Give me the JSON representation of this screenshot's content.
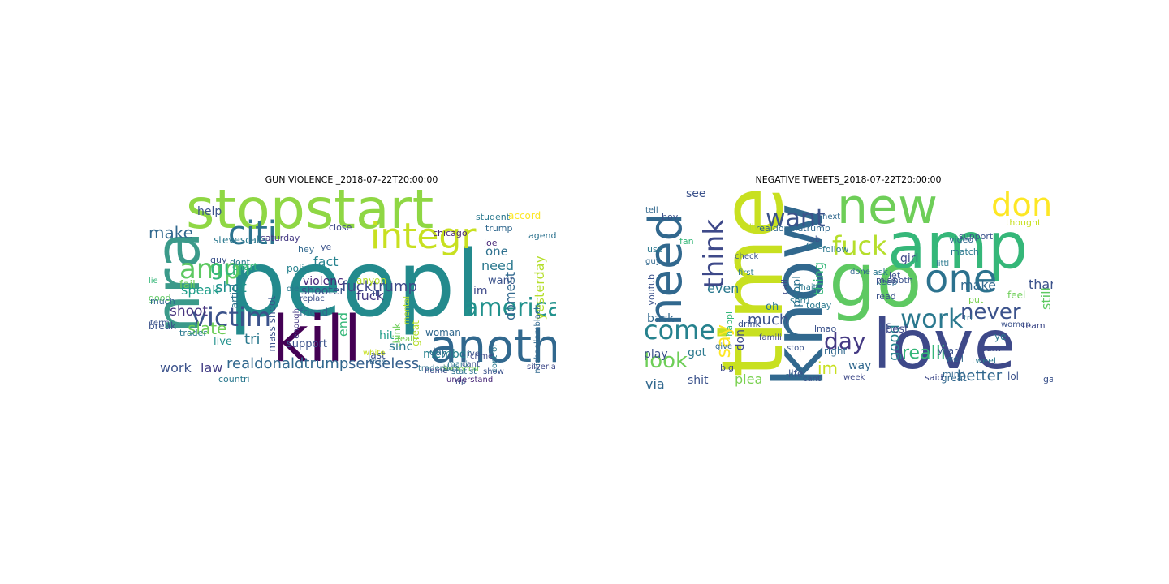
{
  "clouds": [
    {
      "title": "GUN VIOLENCE _2018-07-22T20:00:00",
      "words": [
        {
          "text": "nra",
          "color": "#3b9a8a",
          "weight": 1
        },
        {
          "text": "peopl",
          "color": "#238a8d",
          "weight": 1
        },
        {
          "text": "stopstart",
          "color": "#8fd744",
          "weight": 1
        },
        {
          "text": "kill",
          "color": "#440154",
          "weight": 1
        },
        {
          "text": "anoth",
          "color": "#31688e",
          "weight": 1
        },
        {
          "text": "integr",
          "color": "#c8e020",
          "weight": 1
        },
        {
          "text": "citi",
          "color": "#2c728e",
          "weight": 1
        },
        {
          "text": "amp",
          "color": "#5ec962",
          "weight": 1
        },
        {
          "text": "america",
          "color": "#21918c",
          "weight": 1
        },
        {
          "text": "victim",
          "color": "#3b528b",
          "weight": 1
        },
        {
          "text": "gun",
          "color": "#35b779",
          "weight": 1
        },
        {
          "text": "realdonaldtrump",
          "color": "#31688e",
          "weight": 1
        },
        {
          "text": "senseless",
          "color": "#355f8d",
          "weight": 1
        },
        {
          "text": "fact",
          "color": "#26828e",
          "weight": 1
        },
        {
          "text": "violenc",
          "color": "#482878",
          "weight": 1
        },
        {
          "text": "fucktrump",
          "color": "#3e4989",
          "weight": 1
        },
        {
          "text": "fuck",
          "color": "#443983",
          "weight": 1
        },
        {
          "text": "need",
          "color": "#2a788e",
          "weight": 1
        },
        {
          "text": "make",
          "color": "#31688e",
          "weight": 1
        },
        {
          "text": "shot",
          "color": "#21918c",
          "weight": 1
        },
        {
          "text": "shooter",
          "color": "#3b528b",
          "weight": 1
        },
        {
          "text": "speak",
          "color": "#1f9e89",
          "weight": 1
        },
        {
          "text": "shoot",
          "color": "#46337e",
          "weight": 1
        },
        {
          "text": "slate",
          "color": "#6ece58",
          "weight": 1
        },
        {
          "text": "tri",
          "color": "#2a788e",
          "weight": 1
        },
        {
          "text": "work",
          "color": "#3b528b",
          "weight": 1
        },
        {
          "text": "law",
          "color": "#433e85",
          "weight": 1
        },
        {
          "text": "live",
          "color": "#21918c",
          "weight": 1
        },
        {
          "text": "member",
          "color": "#26828e",
          "weight": 1
        },
        {
          "text": "yesterday",
          "color": "#b5de2b",
          "weight": 1
        },
        {
          "text": "domest",
          "color": "#31688e",
          "weight": 1
        },
        {
          "text": "one",
          "color": "#2d708e",
          "weight": 1
        },
        {
          "text": "want",
          "color": "#3b528b",
          "weight": 1
        },
        {
          "text": "im",
          "color": "#3e4989",
          "weight": 1
        },
        {
          "text": "sinc",
          "color": "#2a788e",
          "weight": 1
        },
        {
          "text": "hit",
          "color": "#1f9e89",
          "weight": 1
        },
        {
          "text": "end",
          "color": "#35b779",
          "weight": 1
        },
        {
          "text": "woman",
          "color": "#31688e",
          "weight": 1
        },
        {
          "text": "help",
          "color": "#3b528b",
          "weight": 1
        },
        {
          "text": "fail",
          "color": "#6ece58",
          "weight": 1
        },
        {
          "text": "saturday",
          "color": "#443983",
          "weight": 1
        },
        {
          "text": "stevescalis",
          "color": "#2a788e",
          "weight": 1
        },
        {
          "text": "chicago",
          "color": "#482878",
          "weight": 1
        },
        {
          "text": "agenda",
          "color": "#2c728e",
          "weight": 1
        },
        {
          "text": "mass shoot",
          "color": "#3b528b",
          "weight": 1
        },
        {
          "text": "day",
          "color": "#31688e",
          "weight": 1
        },
        {
          "text": "accord",
          "color": "#fde725",
          "weight": 1
        },
        {
          "text": "crime",
          "color": "#3e4989",
          "weight": 1
        },
        {
          "text": "mental",
          "color": "#b5de2b",
          "weight": 1
        },
        {
          "text": "friend",
          "color": "#31688e",
          "weight": 1
        },
        {
          "text": "support",
          "color": "#3b528b",
          "weight": 1
        },
        {
          "text": "trader",
          "color": "#2a788e",
          "weight": 1
        },
        {
          "text": "break",
          "color": "#3b528b",
          "weight": 1
        },
        {
          "text": "good",
          "color": "#5ec962",
          "weight": 1
        },
        {
          "text": "silveriak",
          "color": "#3e4989",
          "weight": 1
        },
        {
          "text": "traderjo",
          "color": "#2c728e",
          "weight": 1
        },
        {
          "text": "democrat",
          "color": "#7ad151",
          "weight": 1
        },
        {
          "text": "hey",
          "color": "#31688e",
          "weight": 1
        },
        {
          "text": "guy",
          "color": "#3b528b",
          "weight": 1
        },
        {
          "text": "polic",
          "color": "#26828e",
          "weight": 1
        },
        {
          "text": "close",
          "color": "#3e4989",
          "weight": 1
        },
        {
          "text": "ye",
          "color": "#3b528b",
          "weight": 1
        },
        {
          "text": "dont",
          "color": "#2a788e",
          "weight": 1
        },
        {
          "text": "chart",
          "color": "#35b779",
          "weight": 1
        },
        {
          "text": "anyon",
          "color": "#b5de2b",
          "weight": 1
        },
        {
          "text": "replac",
          "color": "#3b528b",
          "weight": 1
        },
        {
          "text": "die",
          "color": "#2a788e",
          "weight": 1
        },
        {
          "text": "enough",
          "color": "#443983",
          "weight": 1
        },
        {
          "text": "last",
          "color": "#3b528b",
          "weight": 1
        },
        {
          "text": "true",
          "color": "#31688e",
          "weight": 1
        },
        {
          "text": "statist",
          "color": "#2c728e",
          "weight": 1
        },
        {
          "text": "home",
          "color": "#3e4989",
          "weight": 1
        },
        {
          "text": "realiz",
          "color": "#7ad151",
          "weight": 1
        },
        {
          "text": "white",
          "color": "#c8e020",
          "weight": 1
        },
        {
          "text": "cant",
          "color": "#3b528b",
          "weight": 1
        },
        {
          "text": "student",
          "color": "#2a788e",
          "weight": 1
        },
        {
          "text": "trump",
          "color": "#31688e",
          "weight": 1
        },
        {
          "text": "joe",
          "color": "#482878",
          "weight": 1
        },
        {
          "text": "liar",
          "color": "#3b528b",
          "weight": 1
        },
        {
          "text": "michaeliamblack",
          "color": "#31688e",
          "weight": 1
        },
        {
          "text": "think",
          "color": "#6ece58",
          "weight": 1
        },
        {
          "text": "great",
          "color": "#b5de2b",
          "weight": 1
        },
        {
          "text": "ill",
          "color": "#3b528b",
          "weight": 1
        },
        {
          "text": "countri",
          "color": "#2a788e",
          "weight": 1
        },
        {
          "text": "term",
          "color": "#3b528b",
          "weight": 1
        },
        {
          "text": "much",
          "color": "#31688e",
          "weight": 1
        },
        {
          "text": "lie",
          "color": "#35b779",
          "weight": 1
        },
        {
          "text": "articl",
          "color": "#2c728e",
          "weight": 1
        },
        {
          "text": "rip",
          "color": "#3b528b",
          "weight": 1
        },
        {
          "text": "mani",
          "color": "#2a788e",
          "weight": 1
        },
        {
          "text": "side",
          "color": "#31688e",
          "weight": 1
        },
        {
          "text": "ive",
          "color": "#3b528b",
          "weight": 1
        },
        {
          "text": "control",
          "color": "#2a788e",
          "weight": 1
        },
        {
          "text": "understand",
          "color": "#482878",
          "weight": 1
        },
        {
          "text": "show",
          "color": "#3b528b",
          "weight": 1
        }
      ]
    },
    {
      "title": "NEGATIVE TWEETS_2018-07-22T20:00:00",
      "words": [
        {
          "text": "time",
          "color": "#c8e020",
          "weight": 1
        },
        {
          "text": "love",
          "color": "#3e4989",
          "weight": 1
        },
        {
          "text": "know",
          "color": "#31688e",
          "weight": 1
        },
        {
          "text": "go",
          "color": "#5ec962",
          "weight": 1
        },
        {
          "text": "amp",
          "color": "#35b779",
          "weight": 1
        },
        {
          "text": "new",
          "color": "#6ece58",
          "weight": 1
        },
        {
          "text": "one",
          "color": "#2c728e",
          "weight": 1
        },
        {
          "text": "dont",
          "color": "#fde725",
          "weight": 1
        },
        {
          "text": "need",
          "color": "#31688e",
          "weight": 1
        },
        {
          "text": "fuck",
          "color": "#b5de2b",
          "weight": 1
        },
        {
          "text": "want",
          "color": "#3b528b",
          "weight": 1
        },
        {
          "text": "think",
          "color": "#3e4989",
          "weight": 1
        },
        {
          "text": "work",
          "color": "#2a788e",
          "weight": 1
        },
        {
          "text": "never",
          "color": "#3b528b",
          "weight": 1
        },
        {
          "text": "day",
          "color": "#443983",
          "weight": 1
        },
        {
          "text": "come",
          "color": "#26828e",
          "weight": 1
        },
        {
          "text": "look",
          "color": "#6ece58",
          "weight": 1
        },
        {
          "text": "realli",
          "color": "#35b779",
          "weight": 1
        },
        {
          "text": "better",
          "color": "#31688e",
          "weight": 1
        },
        {
          "text": "say",
          "color": "#fde725",
          "weight": 1
        },
        {
          "text": "im",
          "color": "#c8e020",
          "weight": 1
        },
        {
          "text": "make",
          "color": "#31688e",
          "weight": 1
        },
        {
          "text": "thank",
          "color": "#3b528b",
          "weight": 1
        },
        {
          "text": "girl",
          "color": "#3e4989",
          "weight": 1
        },
        {
          "text": "even",
          "color": "#2a788e",
          "weight": 1
        },
        {
          "text": "still",
          "color": "#5ec962",
          "weight": 1
        },
        {
          "text": "much",
          "color": "#3b528b",
          "weight": 1
        },
        {
          "text": "good",
          "color": "#26828e",
          "weight": 1
        },
        {
          "text": "back",
          "color": "#31688e",
          "weight": 1
        },
        {
          "text": "play",
          "color": "#3b528b",
          "weight": 1
        },
        {
          "text": "got",
          "color": "#2a788e",
          "weight": 1
        },
        {
          "text": "via",
          "color": "#31688e",
          "weight": 1
        },
        {
          "text": "shit",
          "color": "#3b528b",
          "weight": 1
        },
        {
          "text": "plea",
          "color": "#7ad151",
          "weight": 1
        },
        {
          "text": "don",
          "color": "#3e4989",
          "weight": 1
        },
        {
          "text": "thing",
          "color": "#35b779",
          "weight": 1
        },
        {
          "text": "peopl",
          "color": "#2c728e",
          "weight": 1
        },
        {
          "text": "see",
          "color": "#3b528b",
          "weight": 1
        },
        {
          "text": "way",
          "color": "#31688e",
          "weight": 1
        },
        {
          "text": "us",
          "color": "#3b528b",
          "weight": 1
        },
        {
          "text": "ye",
          "color": "#2a788e",
          "weight": 1
        },
        {
          "text": "women",
          "color": "#3b528b",
          "weight": 1
        },
        {
          "text": "feel",
          "color": "#6ece58",
          "weight": 1
        },
        {
          "text": "best",
          "color": "#3e4989",
          "weight": 1
        },
        {
          "text": "great",
          "color": "#31688e",
          "weight": 1
        },
        {
          "text": "lol",
          "color": "#3b528b",
          "weight": 1
        },
        {
          "text": "oh",
          "color": "#2a788e",
          "weight": 1
        },
        {
          "text": "call",
          "color": "#3e4989",
          "weight": 1
        },
        {
          "text": "right",
          "color": "#31688e",
          "weight": 1
        },
        {
          "text": "life",
          "color": "#3b528b",
          "weight": 1
        },
        {
          "text": "famili",
          "color": "#3e4989",
          "weight": 1
        },
        {
          "text": "happi",
          "color": "#35b779",
          "weight": 1
        },
        {
          "text": "keep",
          "color": "#31688e",
          "weight": 1
        },
        {
          "text": "follow",
          "color": "#2a788e",
          "weight": 1
        },
        {
          "text": "job",
          "color": "#3b528b",
          "weight": 1
        },
        {
          "text": "free",
          "color": "#2c728e",
          "weight": 1
        },
        {
          "text": "live",
          "color": "#b5de2b",
          "weight": 1
        },
        {
          "text": "realdonaldtrump",
          "color": "#31688e",
          "weight": 1
        },
        {
          "text": "check",
          "color": "#3b528b",
          "weight": 1
        },
        {
          "text": "first",
          "color": "#2a788e",
          "weight": 1
        },
        {
          "text": "drink",
          "color": "#3b528b",
          "weight": 1
        },
        {
          "text": "give",
          "color": "#31688e",
          "weight": 1
        },
        {
          "text": "big",
          "color": "#3e4989",
          "weight": 1
        },
        {
          "text": "today",
          "color": "#2a788e",
          "weight": 1
        },
        {
          "text": "stop",
          "color": "#3b528b",
          "weight": 1
        },
        {
          "text": "stay",
          "color": "#31688e",
          "weight": 1
        },
        {
          "text": "lmao",
          "color": "#3b528b",
          "weight": 1
        },
        {
          "text": "ask",
          "color": "#2a788e",
          "weight": 1
        },
        {
          "text": "miss",
          "color": "#3e4989",
          "weight": 1
        },
        {
          "text": "let",
          "color": "#3b528b",
          "weight": 1
        },
        {
          "text": "video",
          "color": "#31688e",
          "weight": 1
        },
        {
          "text": "match",
          "color": "#2a788e",
          "weight": 1
        },
        {
          "text": "put",
          "color": "#7ad151",
          "weight": 1
        },
        {
          "text": "year",
          "color": "#3b528b",
          "weight": 1
        },
        {
          "text": "mind",
          "color": "#31688e",
          "weight": 1
        },
        {
          "text": "learn",
          "color": "#3e4989",
          "weight": 1
        },
        {
          "text": "tweet",
          "color": "#2a788e",
          "weight": 1
        },
        {
          "text": "game",
          "color": "#3b528b",
          "weight": 1
        },
        {
          "text": "tell",
          "color": "#31688e",
          "weight": 1
        },
        {
          "text": "boy",
          "color": "#3b528b",
          "weight": 1
        },
        {
          "text": "fan",
          "color": "#35b779",
          "weight": 1
        },
        {
          "text": "use",
          "color": "#2a788e",
          "weight": 1
        },
        {
          "text": "said",
          "color": "#3e4989",
          "weight": 1
        },
        {
          "text": "well",
          "color": "#31688e",
          "weight": 1
        },
        {
          "text": "support",
          "color": "#3b528b",
          "weight": 1
        },
        {
          "text": "littl",
          "color": "#2a788e",
          "weight": 1
        },
        {
          "text": "done",
          "color": "#31688e",
          "weight": 1
        },
        {
          "text": "anoth",
          "color": "#3b528b",
          "weight": 1
        },
        {
          "text": "tri",
          "color": "#2c728e",
          "weight": 1
        },
        {
          "text": "team",
          "color": "#3e4989",
          "weight": 1
        },
        {
          "text": "thought",
          "color": "#c8e020",
          "weight": 1
        },
        {
          "text": "youtub",
          "color": "#3b528b",
          "weight": 1
        },
        {
          "text": "guy",
          "color": "#31688e",
          "weight": 1
        },
        {
          "text": "sorri",
          "color": "#2a788e",
          "weight": 1
        },
        {
          "text": "read",
          "color": "#3b528b",
          "weight": 1
        },
        {
          "text": "next",
          "color": "#31688e",
          "weight": 1
        },
        {
          "text": "week",
          "color": "#3e4989",
          "weight": 1
        },
        {
          "text": "cant",
          "color": "#3b528b",
          "weight": 1
        },
        {
          "text": "mait",
          "color": "#2a788e",
          "weight": 1
        }
      ]
    }
  ]
}
